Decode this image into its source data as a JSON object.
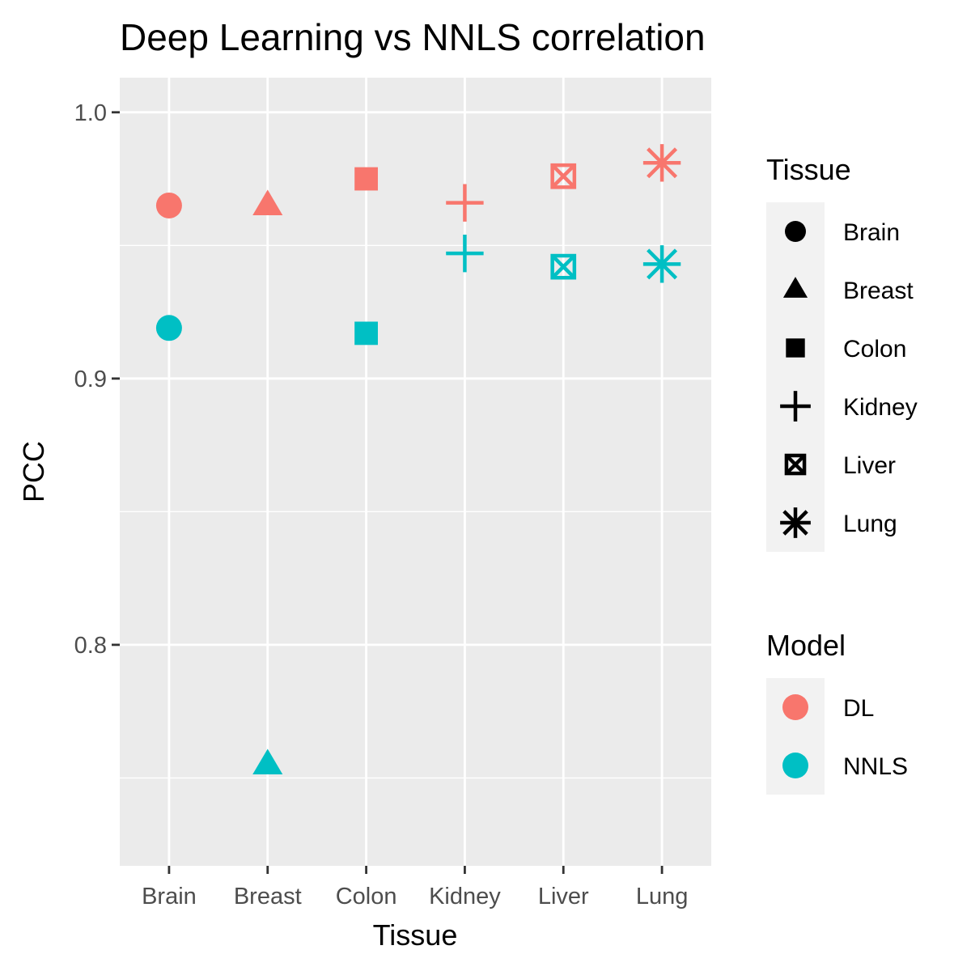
{
  "chart_data": {
    "type": "scatter",
    "title": "Deep Learning vs NNLS correlation",
    "xlabel": "Tissue",
    "ylabel": "PCC",
    "categories": [
      "Brain",
      "Breast",
      "Colon",
      "Kidney",
      "Liver",
      "Lung"
    ],
    "ylim": [
      0.717,
      1.013
    ],
    "yticks": [
      0.8,
      0.9,
      1.0
    ],
    "ytick_labels": [
      "0.8",
      "0.9",
      "1.0"
    ],
    "grid": true,
    "series": [
      {
        "name": "DL",
        "color": "#F8766D",
        "values": [
          0.965,
          0.965,
          0.975,
          0.966,
          0.976,
          0.981
        ]
      },
      {
        "name": "NNLS",
        "color": "#00BFC4",
        "values": [
          0.919,
          0.755,
          0.917,
          0.947,
          0.942,
          0.943
        ]
      }
    ],
    "legend": {
      "placement": "right",
      "shape_title": "Tissue",
      "shapes": [
        {
          "label": "Brain",
          "shape": "circle"
        },
        {
          "label": "Breast",
          "shape": "triangle"
        },
        {
          "label": "Colon",
          "shape": "square"
        },
        {
          "label": "Kidney",
          "shape": "plus"
        },
        {
          "label": "Liver",
          "shape": "boxed-x"
        },
        {
          "label": "Lung",
          "shape": "asterisk"
        }
      ],
      "color_title": "Model",
      "colors": [
        {
          "label": "DL",
          "color": "#F8766D"
        },
        {
          "label": "NNLS",
          "color": "#00BFC4"
        }
      ]
    }
  }
}
